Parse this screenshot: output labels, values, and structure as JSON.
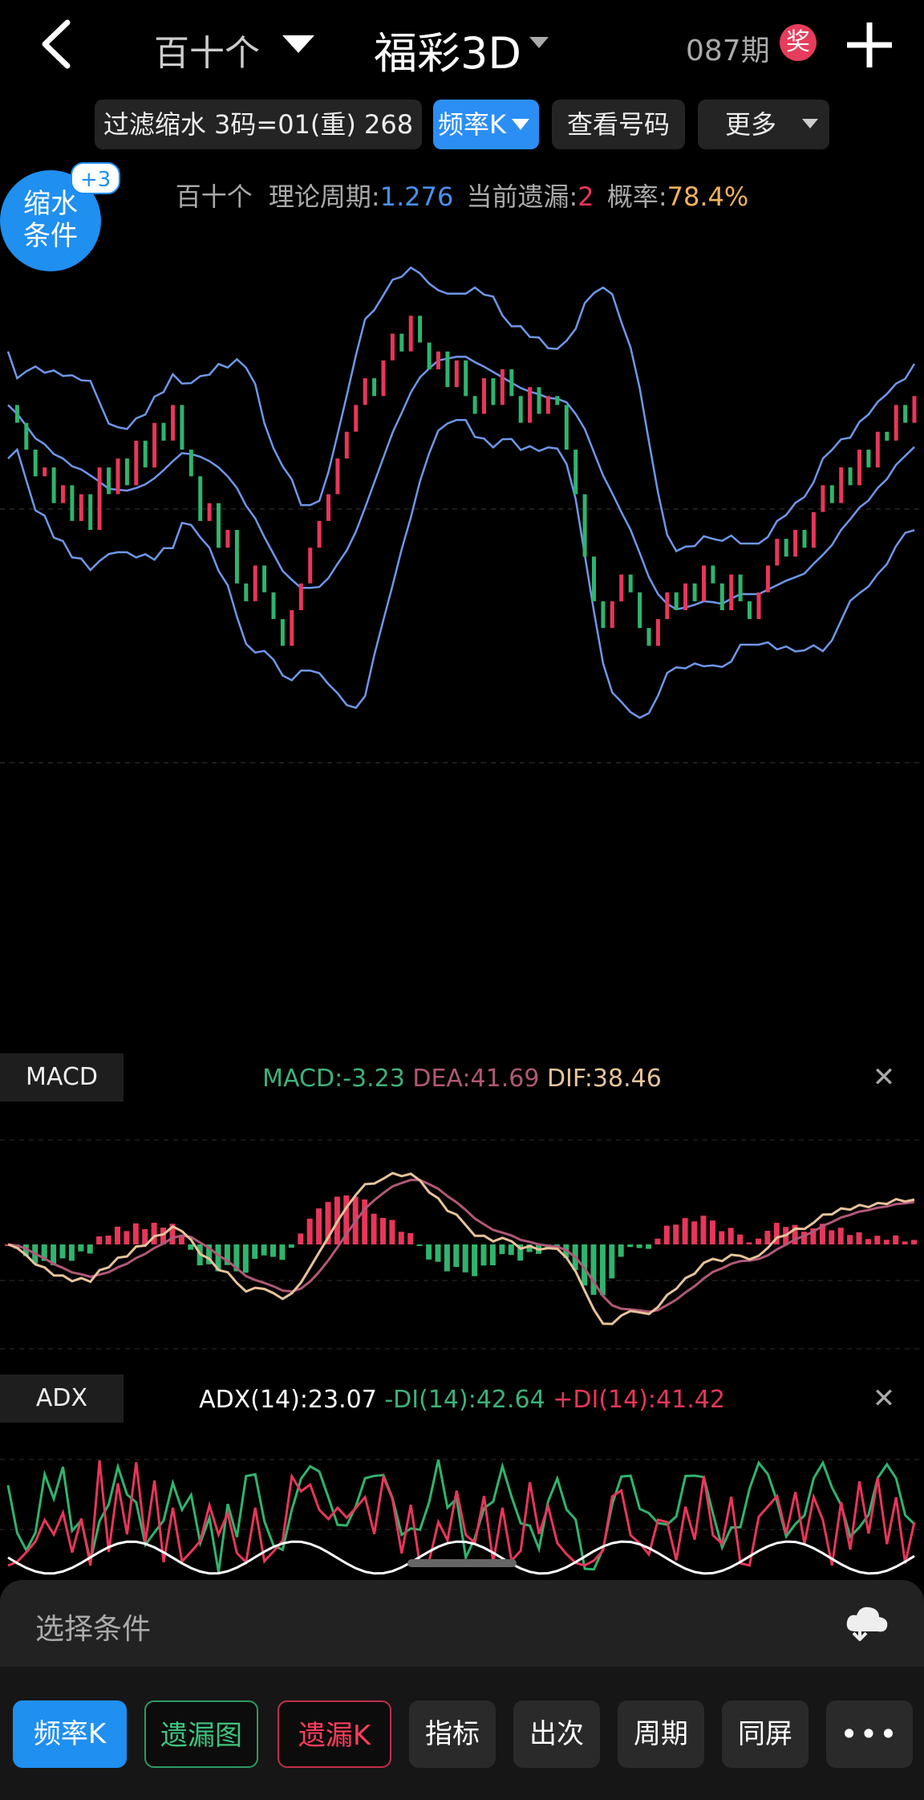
{
  "header": {
    "position_selector": "百十个",
    "title": "福彩3D",
    "period": "087期",
    "prize_badge": "奖"
  },
  "filter_bar": {
    "filter_label": "过滤缩水 3码=01(重) 268",
    "chart_type": "频率K",
    "view_numbers": "查看号码",
    "more": "更多"
  },
  "stats": {
    "position": "百十个",
    "theory_label": "理论周期:",
    "theory_value": "1.276",
    "miss_label": "当前遗漏:",
    "miss_value": "2",
    "prob_label": "概率:",
    "prob_value": "78.4%"
  },
  "shrink_badge": {
    "line1": "缩水",
    "line2": "条件",
    "count": "+3"
  },
  "macd": {
    "tag": "MACD",
    "macd": "MACD:-3.23",
    "dea": "DEA:41.69",
    "dif": "DIF:38.46"
  },
  "adx": {
    "tag": "ADX",
    "adx": "ADX(14):23.07",
    "minus_di": "-DI(14):42.64",
    "plus_di": "+DI(14):41.42"
  },
  "condition_sheet": {
    "placeholder": "选择条件"
  },
  "bottom_tabs": [
    "频率K",
    "遗漏图",
    "遗漏K",
    "指标",
    "出次",
    "周期",
    "同屏",
    "•••"
  ],
  "colors": {
    "accent": "#1f8ff0",
    "up": "#e8365a",
    "down": "#2fb46e",
    "band": "#6f97e8",
    "dif": "#e7c39a",
    "dea": "#b05878"
  },
  "chart_data": {
    "type": "line",
    "price_series": [
      62,
      60,
      57,
      54,
      55,
      51,
      53,
      49,
      52,
      48,
      55,
      52,
      56,
      53,
      58,
      55,
      60,
      58,
      62,
      57,
      54,
      49,
      51,
      46,
      48,
      42,
      40,
      44,
      41,
      38,
      35,
      39,
      42,
      46,
      49,
      52,
      56,
      59,
      62,
      65,
      63,
      67,
      70,
      68,
      72,
      69,
      66,
      68,
      64,
      67,
      63,
      61,
      65,
      62,
      66,
      63,
      60,
      64,
      61,
      63,
      62,
      57,
      52,
      45,
      40,
      37,
      40,
      43,
      41,
      37,
      35,
      38,
      41,
      39,
      42,
      40,
      44,
      42,
      39,
      43,
      40,
      38,
      41,
      44,
      47,
      45,
      48,
      46,
      50,
      53,
      51,
      55,
      53,
      57,
      55,
      59,
      58,
      62,
      60,
      63
    ]
  }
}
